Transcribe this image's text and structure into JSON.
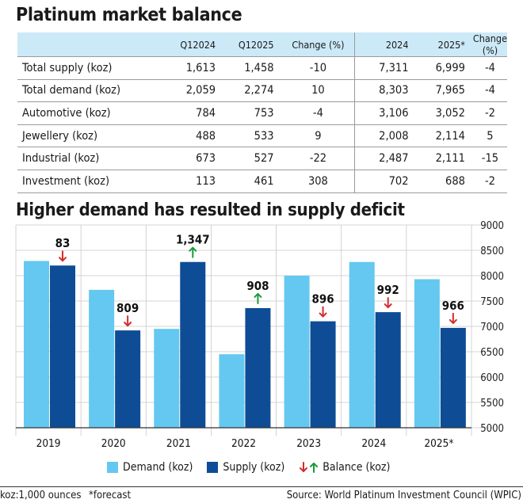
{
  "title": "Platinum market balance",
  "table": {
    "headers": [
      "",
      "Q12024",
      "Q12025",
      "Change (%)",
      "2024",
      "2025*",
      "Change (%)"
    ],
    "rows": [
      [
        "Total supply (koz)",
        "1,613",
        "1,458",
        "-10",
        "7,311",
        "6,999",
        "-4"
      ],
      [
        "Total demand (koz)",
        "2,059",
        "2,274",
        "10",
        "8,303",
        "7,965",
        "-4"
      ],
      [
        "Automotive (koz)",
        "784",
        "753",
        "-4",
        "3,106",
        "3,052",
        "-2"
      ],
      [
        "Jewellery (koz)",
        "488",
        "533",
        "9",
        "2,008",
        "2,114",
        "5"
      ],
      [
        "Industrial (koz)",
        "673",
        "527",
        "-22",
        "2,487",
        "2,111",
        "-15"
      ],
      [
        "Investment (koz)",
        "113",
        "461",
        "308",
        "702",
        "688",
        "-2"
      ]
    ]
  },
  "chart_data": {
    "type": "bar",
    "title": "Higher demand has resulted in supply deficit",
    "categories": [
      "2019",
      "2020",
      "2021",
      "2022",
      "2023",
      "2024",
      "2025*"
    ],
    "series": [
      {
        "name": "Demand (koz)",
        "color": "#64c8f0",
        "values": [
          8290,
          7720,
          6950,
          6450,
          8000,
          8270,
          7930
        ]
      },
      {
        "name": "Supply (koz)",
        "color": "#0e4c96",
        "values": [
          8200,
          6920,
          8270,
          7360,
          7100,
          7280,
          6970
        ]
      }
    ],
    "balance": {
      "name": "Balance (koz)",
      "labels": [
        "83",
        "809",
        "1,347",
        "908",
        "896",
        "992",
        "966"
      ],
      "direction": [
        "down",
        "down",
        "up",
        "up",
        "down",
        "down",
        "down"
      ],
      "colors": {
        "down": "#d62b2b",
        "up": "#1a9a3c"
      }
    },
    "yticks": [
      5000,
      5500,
      6000,
      6500,
      7000,
      7500,
      8000,
      8500,
      9000
    ],
    "ylim": [
      5000,
      9000
    ],
    "yaxis_position": "right",
    "grid": true,
    "legend_position": "bottom"
  },
  "footer": {
    "unit_note": "koz:1,000 ounces",
    "forecast_note": "*forecast",
    "source": "Source: World Platinum Investment Council (WPIC)"
  }
}
